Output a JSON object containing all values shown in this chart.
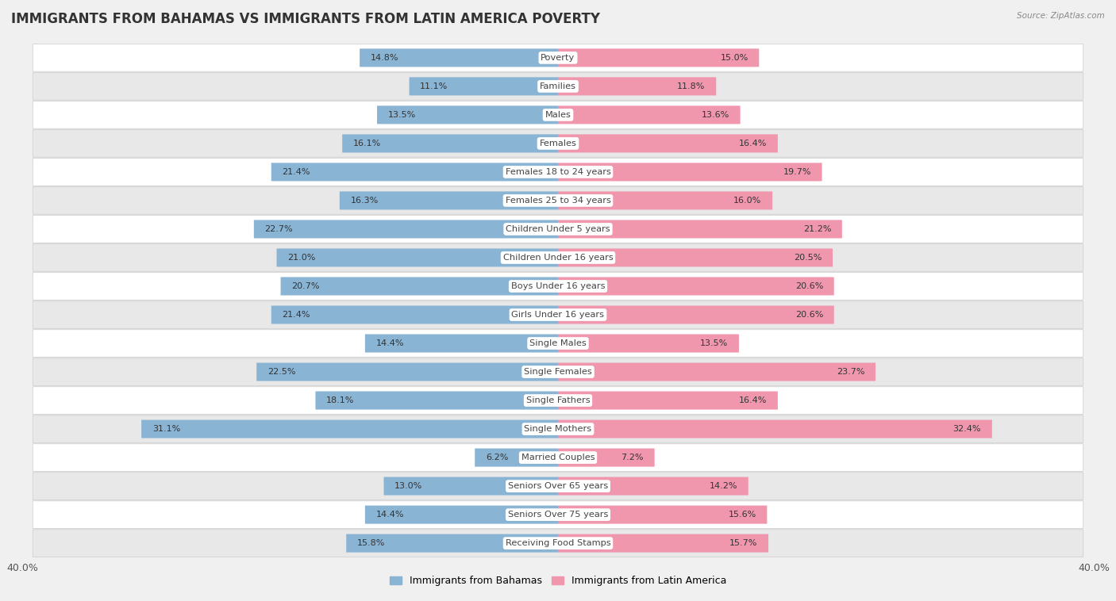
{
  "title": "IMMIGRANTS FROM BAHAMAS VS IMMIGRANTS FROM LATIN AMERICA POVERTY",
  "source": "Source: ZipAtlas.com",
  "categories": [
    "Poverty",
    "Families",
    "Males",
    "Females",
    "Females 18 to 24 years",
    "Females 25 to 34 years",
    "Children Under 5 years",
    "Children Under 16 years",
    "Boys Under 16 years",
    "Girls Under 16 years",
    "Single Males",
    "Single Females",
    "Single Fathers",
    "Single Mothers",
    "Married Couples",
    "Seniors Over 65 years",
    "Seniors Over 75 years",
    "Receiving Food Stamps"
  ],
  "bahamas_values": [
    14.8,
    11.1,
    13.5,
    16.1,
    21.4,
    16.3,
    22.7,
    21.0,
    20.7,
    21.4,
    14.4,
    22.5,
    18.1,
    31.1,
    6.2,
    13.0,
    14.4,
    15.8
  ],
  "latin_values": [
    15.0,
    11.8,
    13.6,
    16.4,
    19.7,
    16.0,
    21.2,
    20.5,
    20.6,
    20.6,
    13.5,
    23.7,
    16.4,
    32.4,
    7.2,
    14.2,
    15.6,
    15.7
  ],
  "bahamas_color": "#8ab4d4",
  "latin_color": "#f097ae",
  "xlim": 40.0,
  "bar_height": 0.62,
  "bg_color": "#f0f0f0",
  "row_bg_color": "#e8e8e8",
  "row_white_color": "#ffffff",
  "title_fontsize": 12,
  "label_fontsize": 8.2,
  "value_fontsize": 8.0,
  "legend_fontsize": 9
}
